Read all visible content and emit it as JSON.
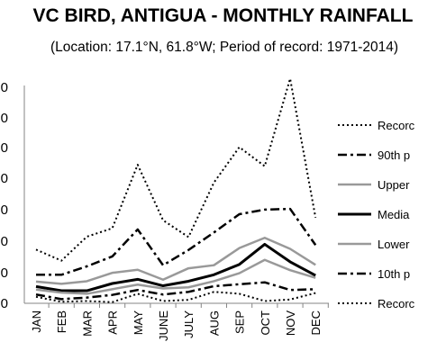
{
  "chart_data": {
    "type": "line",
    "title": "VC BIRD, ANTIGUA - MONTHLY RAINFALL",
    "subtitle": "(Location: 17.1°N, 61.8°W; Period of record: 1971-2014)",
    "categories": [
      "JAN",
      "FEB",
      "MAR",
      "APR",
      "MAY",
      "JUNE",
      "JULY",
      "AUG",
      "SEP",
      "OCT",
      "NOV",
      "DEC"
    ],
    "y_tick_labels": [
      "0",
      "0",
      "0",
      "0",
      "0",
      "0",
      "0",
      "0"
    ],
    "ylim": [
      0,
      400
    ],
    "grid": false,
    "legend_position": "right",
    "series": [
      {
        "name": "Recorc",
        "style": "dotted",
        "color": "#000000",
        "width": 2,
        "values": [
          141,
          112,
          175,
          197,
          364,
          218,
          174,
          317,
          410,
          360,
          590,
          225
        ]
      },
      {
        "name": "90th p",
        "style": "dashdot",
        "color": "#000000",
        "width": 2.5,
        "values": [
          75,
          75,
          97,
          123,
          194,
          100,
          140,
          186,
          234,
          246,
          248,
          153
        ]
      },
      {
        "name": "Upper",
        "style": "solid",
        "color": "#999999",
        "width": 2.5,
        "values": [
          57,
          51,
          58,
          80,
          88,
          62,
          92,
          100,
          145,
          172,
          143,
          101
        ]
      },
      {
        "name": "Media",
        "style": "solid",
        "color": "#000000",
        "width": 3,
        "values": [
          44,
          33,
          33,
          52,
          63,
          46,
          58,
          75,
          102,
          155,
          109,
          73
        ]
      },
      {
        "name": "Lower",
        "style": "solid",
        "color": "#999999",
        "width": 2.5,
        "values": [
          36,
          28,
          25,
          37,
          49,
          39,
          42,
          58,
          79,
          114,
          87,
          67
        ]
      },
      {
        "name": "10th p",
        "style": "dashdot",
        "color": "#000000",
        "width": 2.5,
        "values": [
          23,
          11,
          15,
          22,
          35,
          23,
          30,
          45,
          50,
          55,
          35,
          37
        ]
      },
      {
        "name": "Recorc",
        "style": "dotted",
        "color": "#000000",
        "width": 2,
        "values": [
          17,
          4,
          6,
          3,
          25,
          6,
          9,
          30,
          25,
          6,
          10,
          27
        ]
      }
    ]
  }
}
